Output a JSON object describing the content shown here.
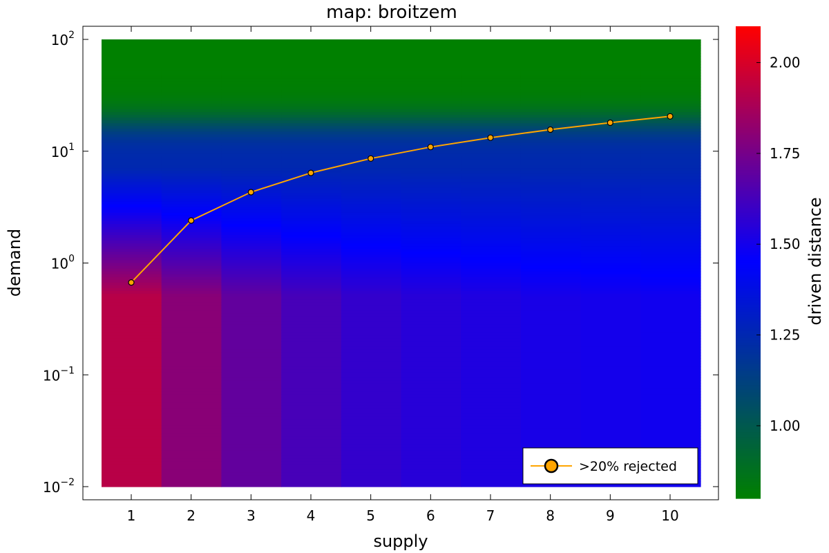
{
  "chart_data": {
    "type": "heatmap",
    "title": "map: broitzem",
    "xlabel": "supply",
    "ylabel": "demand",
    "x_ticks": [
      "1",
      "2",
      "3",
      "4",
      "5",
      "6",
      "7",
      "8",
      "9",
      "10"
    ],
    "y_scale": "log10",
    "y_range": [
      0.01,
      100
    ],
    "y_ticks": [
      {
        "value": 0.01,
        "base": "10",
        "exp": "−2"
      },
      {
        "value": 0.1,
        "base": "10",
        "exp": "−1"
      },
      {
        "value": 1,
        "base": "10",
        "exp": "0"
      },
      {
        "value": 10,
        "base": "10",
        "exp": "1"
      },
      {
        "value": 100,
        "base": "10",
        "exp": "2"
      }
    ],
    "colorbar": {
      "label": "driven distance",
      "range": [
        0.8,
        2.1
      ],
      "ticks": [
        "1.00",
        "1.25",
        "1.50",
        "1.75",
        "2.00"
      ],
      "tick_values": [
        1.0,
        1.25,
        1.5,
        1.75,
        2.0
      ],
      "colors": [
        "#008000",
        "#0000ff",
        "#ff0000"
      ]
    },
    "heatmap": {
      "column_low_values": [
        1.92,
        1.8,
        1.7,
        1.63,
        1.58,
        1.55,
        1.53,
        1.51,
        1.5,
        1.49
      ],
      "high_value": 0.8,
      "mid_value": 1.25,
      "transition_center_log10": 1.25,
      "transition_width_log10": 0.25,
      "mid_to_low_start_log10": 0.85,
      "mid_to_low_end_log10": -0.3
    },
    "series": [
      {
        "name": ">20% rejected",
        "type": "line",
        "color": "#ffa500",
        "x": [
          1,
          2,
          3,
          4,
          5,
          6,
          7,
          8,
          9,
          10
        ],
        "y": [
          0.67,
          2.4,
          4.3,
          6.4,
          8.6,
          10.9,
          13.2,
          15.6,
          18.0,
          20.5
        ]
      }
    ],
    "legend_position": "bottom-right",
    "grid": false
  }
}
